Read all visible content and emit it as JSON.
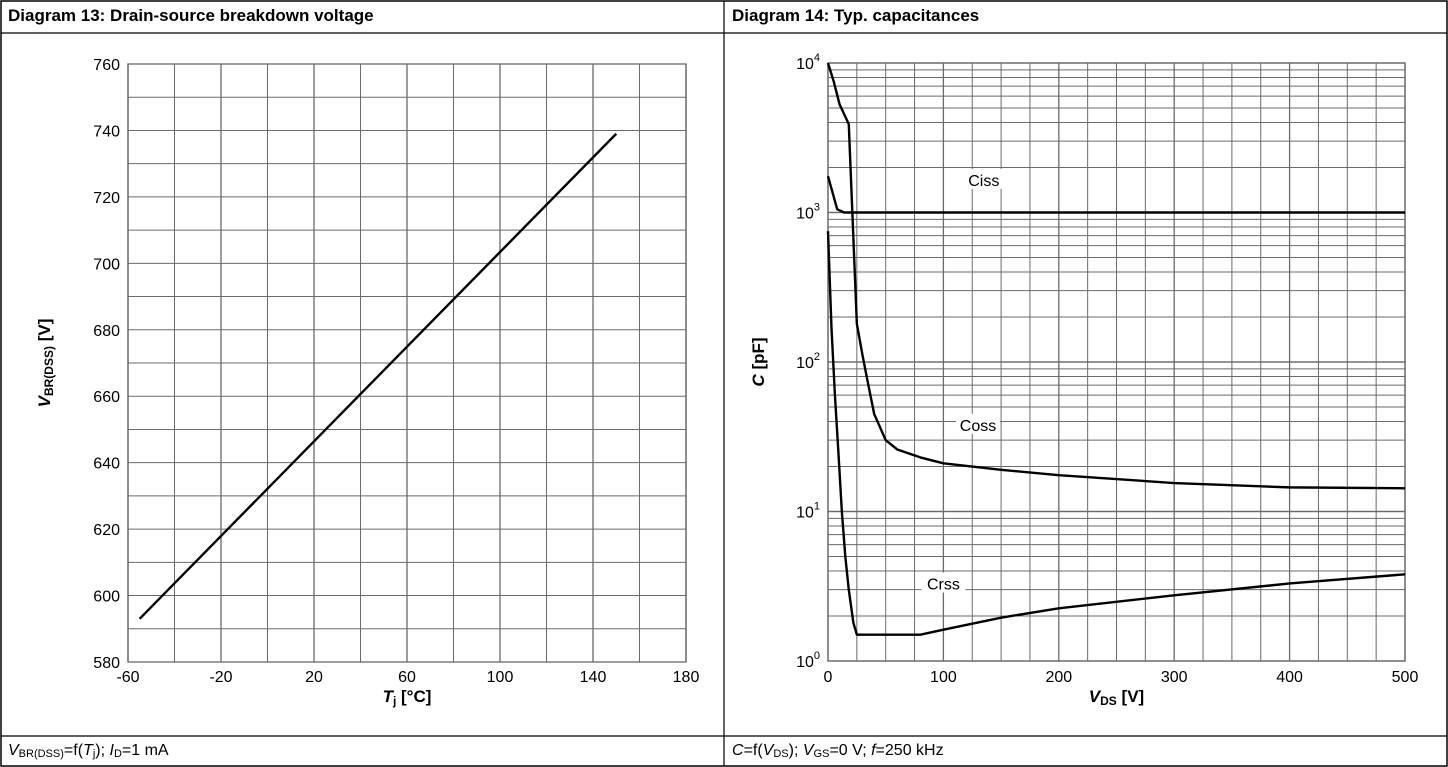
{
  "colors": {
    "grid": "#6a6a6a",
    "curve": "#000000",
    "border": "#000000",
    "background": "#ffffff"
  },
  "panels": [
    {
      "title": "Diagram 13: Drain-source breakdown voltage",
      "footer": {
        "v": "V",
        "vsub": "BR(DSS)",
        "eq": "=f(",
        "t": "T",
        "tsub": "j",
        "rest1": "); ",
        "i": "I",
        "isub": "D",
        "rest2": "=1 mA"
      }
    },
    {
      "title": "Diagram 14: Typ. capacitances",
      "footer": {
        "c": "C",
        "eq": "=f(",
        "v": "V",
        "vsub": "DS",
        "rest1": "); ",
        "v2": "V",
        "v2sub": "GS",
        "rest2": "=0 V; ",
        "f": "f",
        "rest3": "=250 kHz"
      }
    }
  ],
  "chart_data": [
    {
      "type": "line",
      "title": "Diagram 13: Drain-source breakdown voltage",
      "xlabel": {
        "main": "T",
        "sub": "j",
        "unit": " [°C]"
      },
      "ylabel": {
        "main": "V",
        "sub": "BR(DSS)",
        "unit": " [V]"
      },
      "xlim": [
        -60,
        180
      ],
      "ylim": [
        580,
        760
      ],
      "xticks": [
        "-60",
        "-20",
        "20",
        "60",
        "100",
        "140",
        "180"
      ],
      "yticks": [
        "580",
        "600",
        "620",
        "640",
        "660",
        "680",
        "700",
        "720",
        "740",
        "760"
      ],
      "grid": true,
      "series": [
        {
          "x": [
            -55,
            150
          ],
          "y": [
            593,
            739
          ]
        }
      ]
    },
    {
      "type": "line",
      "title": "Diagram 14: Typ. capacitances",
      "xlabel": {
        "main": "V",
        "sub": "DS",
        "unit": " [V]"
      },
      "ylabel": {
        "main": "C",
        "sub": "",
        "unit": " [pF]"
      },
      "xlim": [
        0,
        500
      ],
      "ylim": [
        1,
        10000
      ],
      "yscale": "log",
      "xticks": [
        "0",
        "100",
        "200",
        "300",
        "400",
        "500"
      ],
      "yticks": [
        {
          "base": "10",
          "exp": "0"
        },
        {
          "base": "10",
          "exp": "1"
        },
        {
          "base": "10",
          "exp": "2"
        },
        {
          "base": "10",
          "exp": "3"
        },
        {
          "base": "10",
          "exp": "4"
        }
      ],
      "grid": true,
      "series": [
        {
          "name": "Ciss",
          "x": [
            0,
            8,
            14,
            20,
            50,
            100,
            200,
            300,
            400,
            500
          ],
          "y": [
            1750,
            1050,
            1000,
            1000,
            1000,
            1000,
            1000,
            1000,
            1000,
            1000
          ]
        },
        {
          "name": "Coss",
          "x": [
            0,
            5,
            10,
            18,
            25,
            30,
            35,
            40,
            50,
            60,
            80,
            100,
            150,
            200,
            300,
            400,
            500
          ],
          "y": [
            10000,
            7500,
            5300,
            3900,
            180,
            110,
            70,
            45,
            30,
            26,
            23,
            21,
            19,
            17.5,
            15.5,
            14.5,
            14.3
          ]
        },
        {
          "name": "Crss",
          "x": [
            0,
            3,
            6,
            9,
            12,
            15,
            18,
            22,
            25,
            50,
            80,
            100,
            150,
            200,
            300,
            400,
            500
          ],
          "y": [
            750,
            170,
            60,
            25,
            10,
            5,
            3,
            1.8,
            1.5,
            1.5,
            1.5,
            1.62,
            1.95,
            2.25,
            2.75,
            3.3,
            3.8
          ]
        }
      ],
      "annotations": [
        {
          "text": "Ciss",
          "x": 135,
          "y": 1650
        },
        {
          "text": "Coss",
          "x": 130,
          "y": 38
        },
        {
          "text": "Crss",
          "x": 100,
          "y": 3.3
        }
      ]
    }
  ]
}
